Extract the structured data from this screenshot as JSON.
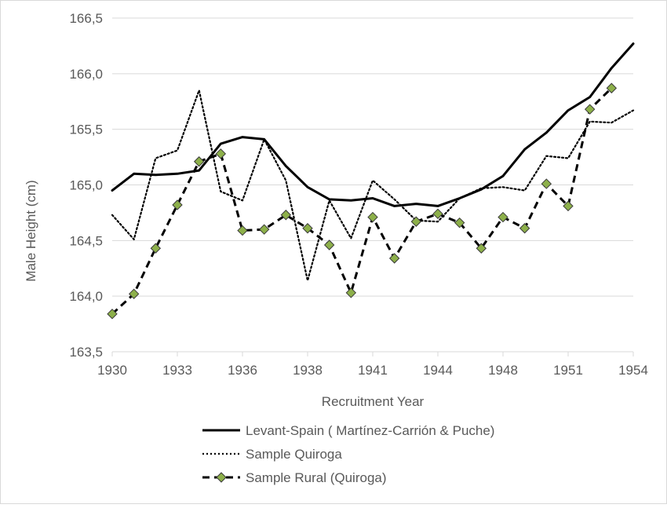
{
  "chart_data": {
    "type": "line",
    "xlabel": "Recruitment Year",
    "ylabel": "Male Height (cm)",
    "ylim": [
      163.5,
      166.5
    ],
    "xlim": [
      1930,
      1954
    ],
    "grid": "horizontal",
    "legend_position": "bottom",
    "x_tick_labels": [
      "1930",
      "1933",
      "1936",
      "1938",
      "1941",
      "1944",
      "1948",
      "1951",
      "1954"
    ],
    "y_tick_labels": [
      "163,5",
      "164,0",
      "164,5",
      "165,0",
      "165,5",
      "166,0",
      "166,5"
    ],
    "y_ticks": [
      163.5,
      164.0,
      164.5,
      165.0,
      165.5,
      166.0,
      166.5
    ],
    "series": [
      {
        "name": "Levant-Spain ( Martínez-Carrión & Puche)",
        "style": "solid",
        "color": "#000000",
        "x": [
          1930,
          1931,
          1932,
          1933,
          1934,
          1935,
          1936,
          1937,
          1938,
          1939,
          1940,
          1941,
          1942,
          1943,
          1944,
          1945,
          1946,
          1947,
          1948,
          1949,
          1950,
          1951,
          1952,
          1953,
          1954
        ],
        "values": [
          164.95,
          165.1,
          165.09,
          165.1,
          165.13,
          165.37,
          165.43,
          165.41,
          165.17,
          164.98,
          164.87,
          164.86,
          164.88,
          164.81,
          164.83,
          164.81,
          164.88,
          164.96,
          165.08,
          165.32,
          165.47,
          165.67,
          165.79,
          166.05,
          166.27
        ]
      },
      {
        "name": "Sample Quiroga",
        "style": "dotted",
        "color": "#000000",
        "x": [
          1930,
          1931,
          1932,
          1933,
          1934,
          1935,
          1936,
          1937,
          1938,
          1939,
          1940,
          1941,
          1942,
          1943,
          1944,
          1945,
          1946,
          1947,
          1948,
          1949,
          1950,
          1951,
          1952,
          1953,
          1954
        ],
        "values": [
          164.73,
          164.51,
          165.24,
          165.31,
          165.85,
          164.94,
          164.86,
          165.41,
          165.04,
          164.14,
          164.86,
          164.52,
          165.04,
          164.87,
          164.68,
          164.67,
          164.88,
          164.97,
          164.98,
          164.95,
          165.26,
          165.24,
          165.57,
          165.56,
          165.67
        ]
      },
      {
        "name": "Sample Rural (Quiroga)",
        "style": "dashed",
        "color": "#000000",
        "marker": "diamond",
        "marker_color": "#8db04a",
        "x": [
          1930,
          1931,
          1932,
          1933,
          1934,
          1935,
          1936,
          1937,
          1938,
          1939,
          1940,
          1941,
          1942,
          1943,
          1944,
          1945,
          1946,
          1947,
          1948,
          1949,
          1950,
          1951,
          1952,
          1953
        ],
        "values": [
          163.84,
          164.02,
          164.43,
          164.82,
          165.21,
          165.28,
          164.59,
          164.6,
          164.73,
          164.61,
          164.46,
          164.03,
          164.71,
          164.34,
          164.67,
          164.74,
          164.66,
          164.43,
          164.71,
          164.61,
          165.01,
          164.81,
          165.68,
          165.87
        ]
      }
    ]
  }
}
